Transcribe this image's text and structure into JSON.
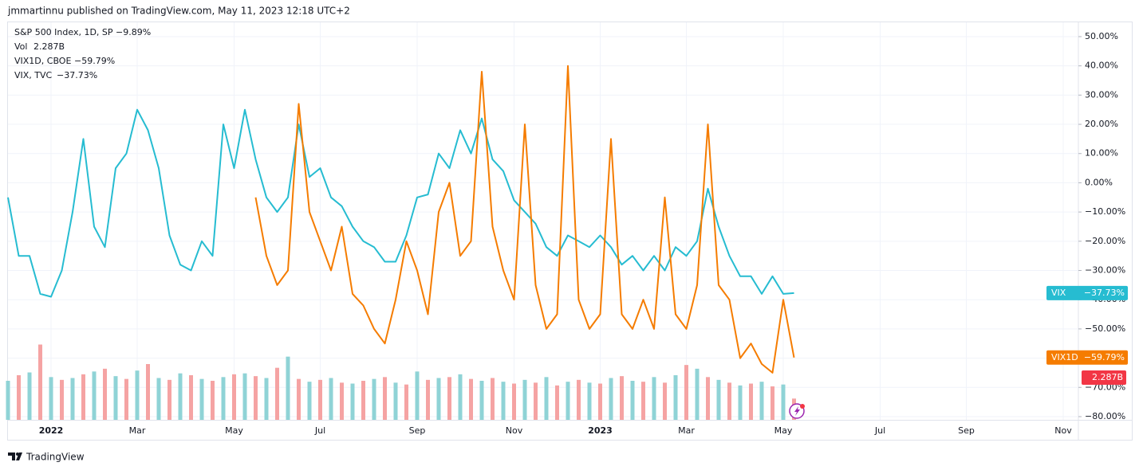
{
  "chart_data": {
    "type": "line",
    "header": "jmmartinnu published on TradingView.com, May 11, 2023 12:18 UTC+2",
    "footer": "TradingView",
    "main_symbol": {
      "name": "S&P 500 Index, 1D, SP",
      "change_label": "−9.89%",
      "color": "#2962ff"
    },
    "categories": [
      null,
      null,
      null,
      null,
      "2022",
      null,
      null,
      null,
      null,
      null,
      null,
      null,
      "Mar",
      null,
      null,
      null,
      null,
      null,
      null,
      null,
      null,
      "May",
      null,
      null,
      null,
      null,
      null,
      null,
      null,
      "Jul",
      null,
      null,
      null,
      null,
      null,
      null,
      null,
      null,
      "Sep",
      null,
      null,
      null,
      null,
      null,
      null,
      null,
      null,
      "Nov",
      null,
      null,
      null,
      null,
      null,
      null,
      null,
      "2023",
      null,
      null,
      null,
      null,
      null,
      null,
      null,
      "Mar",
      null,
      null,
      null,
      null,
      null,
      null,
      null,
      null,
      "May",
      null,
      null,
      null,
      null,
      null,
      null,
      null,
      null,
      "Jul",
      null,
      null,
      null,
      null,
      null,
      null,
      null,
      "Sep",
      null,
      null,
      null,
      null,
      null,
      null,
      null,
      null,
      "Nov",
      null
    ],
    "series": [
      {
        "name": "VIX, TVC",
        "tag": "VIX",
        "color": "#26bcd1",
        "last_label": "−37.73%",
        "values": [
          -5,
          -25,
          -25,
          -38,
          -39,
          -30,
          -10,
          15,
          -15,
          -22,
          5,
          10,
          25,
          18,
          5,
          -18,
          -28,
          -30,
          -20,
          -25,
          20,
          5,
          25,
          8,
          -5,
          -10,
          -5,
          20,
          2,
          5,
          -5,
          -8,
          -15,
          -20,
          -22,
          -27,
          -27,
          -18,
          -5,
          -4,
          10,
          5,
          18,
          10,
          22,
          8,
          4,
          -6,
          -10,
          -14,
          -22,
          -25,
          -18,
          -20,
          -22,
          -18,
          -22,
          -28,
          -25,
          -30,
          -25,
          -30,
          -22,
          -25,
          -20,
          -2,
          -15,
          -25,
          -32,
          -32,
          -38,
          -32,
          -38,
          -37.73,
          null,
          null,
          null,
          null,
          null,
          null,
          null,
          null,
          null,
          null,
          null,
          null,
          null,
          null,
          null,
          null,
          null,
          null,
          null,
          null,
          null,
          null,
          null,
          null,
          null,
          null
        ]
      },
      {
        "name": "VIX1D, CBOE",
        "tag": "VIX1D",
        "color": "#f57c00",
        "last_label": "−59.79%",
        "values": [
          null,
          null,
          null,
          null,
          null,
          null,
          null,
          null,
          null,
          null,
          null,
          null,
          null,
          null,
          null,
          null,
          null,
          null,
          null,
          null,
          null,
          null,
          null,
          -5,
          -25,
          -35,
          -30,
          27,
          -10,
          -20,
          -30,
          -15,
          -38,
          -42,
          -50,
          -55,
          -40,
          -20,
          -30,
          -45,
          -10,
          0,
          -25,
          -20,
          38,
          -15,
          -30,
          -40,
          20,
          -35,
          -50,
          -45,
          40,
          -40,
          -50,
          -45,
          15,
          -45,
          -50,
          -40,
          -50,
          -5,
          -45,
          -50,
          -35,
          20,
          -35,
          -40,
          -60,
          -55,
          -62,
          -65,
          -40,
          -59.79,
          null,
          null,
          null,
          null,
          null,
          null,
          null,
          null,
          null,
          null,
          null,
          null,
          null,
          null,
          null,
          null,
          null,
          null,
          null,
          null,
          null,
          null,
          null,
          null,
          null,
          null
        ]
      }
    ],
    "volume": {
      "name": "Vol",
      "last_label": "2.287B",
      "color": "#f23645",
      "up_color": "#8fd3d6",
      "down_color": "#f5a3a3",
      "ylim": [
        0,
        12
      ],
      "values": [
        4.2,
        4.8,
        5.1,
        8.1,
        4.6,
        4.3,
        4.5,
        4.9,
        5.2,
        5.5,
        4.7,
        4.4,
        5.3,
        6.0,
        4.5,
        4.3,
        5.0,
        4.8,
        4.4,
        4.2,
        4.6,
        4.9,
        5.0,
        4.7,
        4.5,
        5.6,
        6.8,
        4.4,
        4.1,
        4.3,
        4.5,
        4.0,
        3.9,
        4.2,
        4.4,
        4.6,
        4.0,
        3.8,
        5.2,
        4.3,
        4.5,
        4.6,
        4.9,
        4.4,
        4.2,
        4.5,
        4.1,
        3.9,
        4.3,
        4.0,
        4.6,
        3.7,
        4.1,
        4.3,
        4.0,
        3.9,
        4.5,
        4.7,
        4.2,
        4.1,
        4.6,
        4.0,
        4.8,
        5.9,
        5.5,
        4.6,
        4.3,
        4.0,
        3.7,
        3.9,
        4.1,
        3.6,
        3.8,
        2.287,
        null,
        null,
        null,
        null,
        null,
        null,
        null,
        null,
        null,
        null,
        null,
        null,
        null,
        null,
        null,
        null,
        null,
        null,
        null,
        null,
        null,
        null,
        null,
        null,
        null,
        null
      ]
    },
    "ylim": [
      -81.1,
      54.9
    ],
    "yticks": [
      {
        "value": 50,
        "label": "50.00%"
      },
      {
        "value": 40,
        "label": "40.00%"
      },
      {
        "value": 30,
        "label": "30.00%"
      },
      {
        "value": 20,
        "label": "20.00%"
      },
      {
        "value": 10,
        "label": "10.00%"
      },
      {
        "value": 0,
        "label": "0.00%"
      },
      {
        "value": -10,
        "label": "−10.00%"
      },
      {
        "value": -20,
        "label": "−20.00%"
      },
      {
        "value": -30,
        "label": "−30.00%"
      },
      {
        "value": -40,
        "label": "−40.00%"
      },
      {
        "value": -50,
        "label": "−50.00%"
      },
      {
        "value": -60,
        "label": "−60.00%"
      },
      {
        "value": -70,
        "label": "−70.00%"
      },
      {
        "value": -80,
        "label": "−80.00%"
      }
    ],
    "grid": true
  }
}
